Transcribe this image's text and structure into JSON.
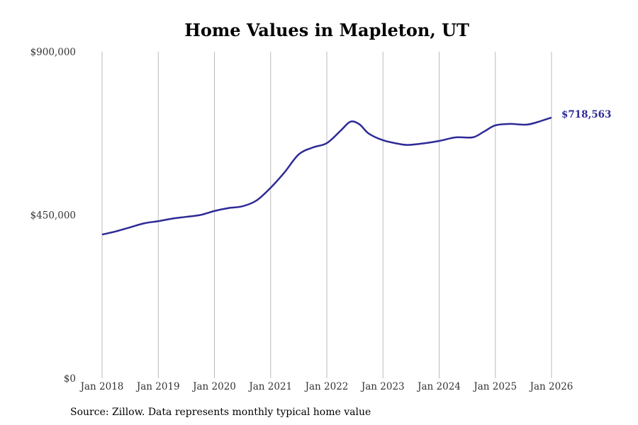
{
  "chart_data": {
    "type": "line",
    "title": "Home Values in Mapleton, UT",
    "source": "Source: Zillow. Data represents monthly typical home value",
    "xlabel": "",
    "ylabel": "",
    "xlim": [
      2018.0,
      2026.0
    ],
    "ylim": [
      0,
      900000
    ],
    "yticks": [
      0,
      450000,
      900000
    ],
    "ytick_labels": [
      "$0",
      "$450,000",
      "$900,000"
    ],
    "xticks": [
      2018,
      2019,
      2020,
      2021,
      2022,
      2023,
      2024,
      2025,
      2026
    ],
    "xtick_labels": [
      "Jan 2018",
      "Jan 2019",
      "Jan 2020",
      "Jan 2021",
      "Jan 2022",
      "Jan 2023",
      "Jan 2024",
      "Jan 2025",
      "Jan 2026"
    ],
    "grid": "vertical",
    "line_color": "#2e2a96",
    "end_label": "$718,563",
    "series": [
      {
        "name": "Typical home value",
        "x": [
          2018.0,
          2018.25,
          2018.5,
          2018.75,
          2019.0,
          2019.25,
          2019.5,
          2019.75,
          2020.0,
          2020.25,
          2020.5,
          2020.75,
          2021.0,
          2021.25,
          2021.5,
          2021.75,
          2022.0,
          2022.25,
          2022.42,
          2022.58,
          2022.75,
          2023.0,
          2023.25,
          2023.45,
          2023.75,
          2024.0,
          2024.3,
          2024.6,
          2024.8,
          2025.0,
          2025.25,
          2025.55,
          2025.75,
          2026.0
        ],
        "values": [
          396000,
          405000,
          416000,
          427000,
          433000,
          440000,
          445000,
          450000,
          461000,
          469000,
          474000,
          490000,
          525000,
          568000,
          617000,
          636000,
          648000,
          683000,
          707000,
          700000,
          674000,
          656000,
          647000,
          643000,
          648000,
          654000,
          664000,
          664000,
          680000,
          697000,
          701000,
          699000,
          706000,
          718563
        ]
      }
    ]
  }
}
